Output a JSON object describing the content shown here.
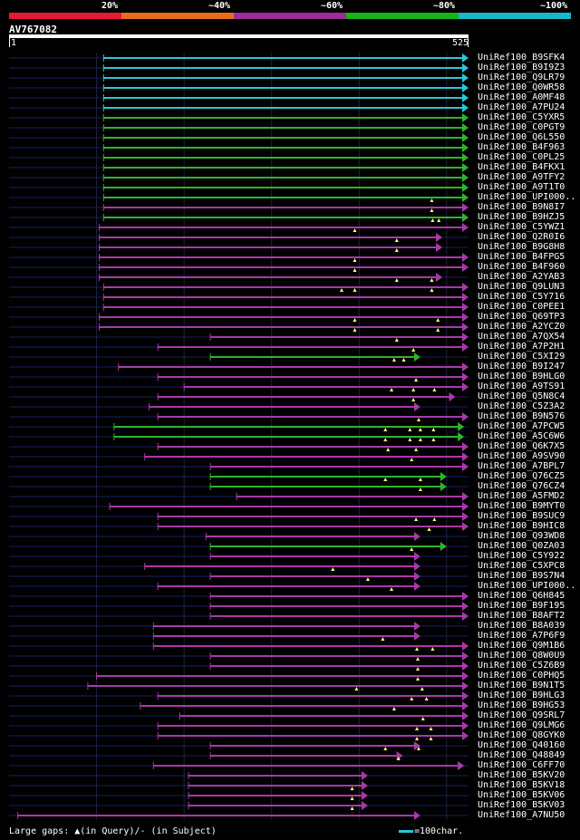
{
  "legend": {
    "items": [
      {
        "label": "20%",
        "color": "#e8173a"
      },
      {
        "label": "~40%",
        "color": "#ea6b1e"
      },
      {
        "label": "~60%",
        "color": "#9b2c9c"
      },
      {
        "label": "~80%",
        "color": "#19b219"
      },
      {
        "label": "~100%",
        "color": "#17b9c8"
      }
    ]
  },
  "query": {
    "name": "AV767082",
    "start": "1",
    "end": "525",
    "length": 525
  },
  "colors": {
    "cyan": "#29c7d6",
    "green": "#2fb32f",
    "purple": "#a63aa8",
    "dash": "#1a2060",
    "gap": "#ffff80"
  },
  "hits": [
    {
      "name": "UniRef100_B9SFK4",
      "start": 108,
      "end": 525,
      "color": "cyan",
      "gaps": []
    },
    {
      "name": "UniRef100_B9I9Z3",
      "start": 108,
      "end": 525,
      "color": "cyan",
      "gaps": []
    },
    {
      "name": "UniRef100_Q9LR79",
      "start": 108,
      "end": 525,
      "color": "cyan",
      "gaps": []
    },
    {
      "name": "UniRef100_Q0WR58",
      "start": 108,
      "end": 525,
      "color": "cyan",
      "gaps": []
    },
    {
      "name": "UniRef100_A0MF48",
      "start": 108,
      "end": 525,
      "color": "cyan",
      "gaps": []
    },
    {
      "name": "UniRef100_A7PU24",
      "start": 108,
      "end": 525,
      "color": "cyan",
      "gaps": []
    },
    {
      "name": "UniRef100_C5YXR5",
      "start": 108,
      "end": 525,
      "color": "green",
      "gaps": []
    },
    {
      "name": "UniRef100_C0PGT9",
      "start": 108,
      "end": 525,
      "color": "green",
      "gaps": []
    },
    {
      "name": "UniRef100_Q6L550",
      "start": 108,
      "end": 525,
      "color": "green",
      "gaps": []
    },
    {
      "name": "UniRef100_B4F963",
      "start": 108,
      "end": 525,
      "color": "green",
      "gaps": []
    },
    {
      "name": "UniRef100_C0PL25",
      "start": 108,
      "end": 525,
      "color": "green",
      "gaps": []
    },
    {
      "name": "UniRef100_B4FKX1",
      "start": 108,
      "end": 525,
      "color": "green",
      "gaps": []
    },
    {
      "name": "UniRef100_A9TFY2",
      "start": 108,
      "end": 525,
      "color": "green",
      "gaps": []
    },
    {
      "name": "UniRef100_A9T1T0",
      "start": 108,
      "end": 525,
      "color": "green",
      "gaps": []
    },
    {
      "name": "UniRef100_UPI000..",
      "start": 108,
      "end": 525,
      "color": "green",
      "gaps": [
        483
      ]
    },
    {
      "name": "UniRef100_B9N8I7",
      "start": 108,
      "end": 525,
      "color": "purple",
      "gaps": [
        483
      ]
    },
    {
      "name": "UniRef100_B9HZJ5",
      "start": 108,
      "end": 525,
      "color": "green",
      "gaps": [
        484,
        491
      ]
    },
    {
      "name": "UniRef100_C5YWZ1",
      "start": 103,
      "end": 525,
      "color": "purple",
      "gaps": [
        395
      ]
    },
    {
      "name": "UniRef100_Q2R0I6",
      "start": 103,
      "end": 495,
      "color": "purple",
      "gaps": [
        443
      ]
    },
    {
      "name": "UniRef100_B9G8H8",
      "start": 103,
      "end": 495,
      "color": "purple",
      "gaps": [
        443
      ]
    },
    {
      "name": "UniRef100_B4FPG5",
      "start": 103,
      "end": 525,
      "color": "purple",
      "gaps": [
        395
      ]
    },
    {
      "name": "UniRef100_B4F960",
      "start": 103,
      "end": 525,
      "color": "purple",
      "gaps": [
        395
      ]
    },
    {
      "name": "UniRef100_A2YAB3",
      "start": 103,
      "end": 495,
      "color": "purple",
      "gaps": [
        443,
        483
      ]
    },
    {
      "name": "UniRef100_Q9LUN3",
      "start": 108,
      "end": 525,
      "color": "purple",
      "gaps": [
        380,
        395,
        483
      ]
    },
    {
      "name": "UniRef100_C5Y716",
      "start": 108,
      "end": 525,
      "color": "purple",
      "gaps": []
    },
    {
      "name": "UniRef100_C0PEE1",
      "start": 108,
      "end": 525,
      "color": "purple",
      "gaps": []
    },
    {
      "name": "UniRef100_Q69TP3",
      "start": 103,
      "end": 525,
      "color": "purple",
      "gaps": [
        395,
        490
      ]
    },
    {
      "name": "UniRef100_A2YCZ0",
      "start": 103,
      "end": 525,
      "color": "purple",
      "gaps": [
        395,
        490
      ]
    },
    {
      "name": "UniRef100_A7QX54",
      "start": 230,
      "end": 525,
      "color": "purple",
      "gaps": [
        443
      ]
    },
    {
      "name": "UniRef100_A7P2H1",
      "start": 170,
      "end": 525,
      "color": "purple",
      "gaps": [
        462
      ]
    },
    {
      "name": "UniRef100_C5XI29",
      "start": 230,
      "end": 470,
      "color": "green",
      "gaps": [
        440,
        451
      ]
    },
    {
      "name": "UniRef100_B9I247",
      "start": 125,
      "end": 525,
      "color": "purple",
      "gaps": []
    },
    {
      "name": "UniRef100_B9HLG0",
      "start": 170,
      "end": 525,
      "color": "purple",
      "gaps": [
        465
      ]
    },
    {
      "name": "UniRef100_A9TS91",
      "start": 200,
      "end": 525,
      "color": "purple",
      "gaps": [
        437,
        462,
        486
      ]
    },
    {
      "name": "UniRef100_Q5N8C4",
      "start": 170,
      "end": 510,
      "color": "purple",
      "gaps": [
        462
      ]
    },
    {
      "name": "UniRef100_C5Z3A2",
      "start": 160,
      "end": 470,
      "color": "purple",
      "gaps": []
    },
    {
      "name": "UniRef100_B9N576",
      "start": 170,
      "end": 525,
      "color": "purple",
      "gaps": [
        468
      ]
    },
    {
      "name": "UniRef100_A7PCW5",
      "start": 120,
      "end": 520,
      "color": "green",
      "gaps": [
        430,
        458,
        470,
        485
      ]
    },
    {
      "name": "UniRef100_A5C6W6",
      "start": 120,
      "end": 520,
      "color": "green",
      "gaps": [
        430,
        458,
        470,
        485
      ]
    },
    {
      "name": "UniRef100_Q6K7X5",
      "start": 170,
      "end": 525,
      "color": "purple",
      "gaps": [
        433,
        465
      ]
    },
    {
      "name": "UniRef100_A9SV90",
      "start": 155,
      "end": 525,
      "color": "purple",
      "gaps": [
        460
      ]
    },
    {
      "name": "UniRef100_A7BPL7",
      "start": 230,
      "end": 525,
      "color": "purple",
      "gaps": []
    },
    {
      "name": "UniRef100_Q76CZ5",
      "start": 230,
      "end": 500,
      "color": "green",
      "gaps": [
        430,
        470
      ]
    },
    {
      "name": "UniRef100_Q76CZ4",
      "start": 230,
      "end": 500,
      "color": "green",
      "gaps": [
        470
      ]
    },
    {
      "name": "UniRef100_A5FMD2",
      "start": 260,
      "end": 525,
      "color": "purple",
      "gaps": []
    },
    {
      "name": "UniRef100_B9MYT0",
      "start": 115,
      "end": 525,
      "color": "purple",
      "gaps": []
    },
    {
      "name": "UniRef100_B9SUC9",
      "start": 170,
      "end": 525,
      "color": "purple",
      "gaps": [
        465,
        486
      ]
    },
    {
      "name": "UniRef100_B9HIC8",
      "start": 170,
      "end": 525,
      "color": "purple",
      "gaps": [
        480
      ]
    },
    {
      "name": "UniRef100_Q93WD8",
      "start": 225,
      "end": 470,
      "color": "purple",
      "gaps": []
    },
    {
      "name": "UniRef100_Q0ZA03",
      "start": 230,
      "end": 500,
      "color": "green",
      "gaps": [
        460
      ]
    },
    {
      "name": "UniRef100_C5Y922",
      "start": 230,
      "end": 470,
      "color": "purple",
      "gaps": []
    },
    {
      "name": "UniRef100_C5XPC8",
      "start": 155,
      "end": 470,
      "color": "purple",
      "gaps": [
        370
      ]
    },
    {
      "name": "UniRef100_B9S7N4",
      "start": 230,
      "end": 470,
      "color": "purple",
      "gaps": [
        410
      ]
    },
    {
      "name": "UniRef100_UPI000..",
      "start": 170,
      "end": 470,
      "color": "purple",
      "gaps": [
        437
      ]
    },
    {
      "name": "UniRef100_Q6H845",
      "start": 230,
      "end": 525,
      "color": "purple",
      "gaps": []
    },
    {
      "name": "UniRef100_B9F195",
      "start": 230,
      "end": 525,
      "color": "purple",
      "gaps": []
    },
    {
      "name": "UniRef100_B8AFT2",
      "start": 230,
      "end": 525,
      "color": "purple",
      "gaps": []
    },
    {
      "name": "UniRef100_B8A039",
      "start": 165,
      "end": 470,
      "color": "purple",
      "gaps": []
    },
    {
      "name": "UniRef100_A7P6F9",
      "start": 165,
      "end": 470,
      "color": "purple",
      "gaps": [
        427
      ]
    },
    {
      "name": "UniRef100_Q9M1B6",
      "start": 165,
      "end": 525,
      "color": "purple",
      "gaps": [
        466,
        484
      ]
    },
    {
      "name": "UniRef100_Q8W0U9",
      "start": 230,
      "end": 525,
      "color": "purple",
      "gaps": [
        467
      ]
    },
    {
      "name": "UniRef100_C5Z6B9",
      "start": 230,
      "end": 525,
      "color": "purple",
      "gaps": [
        467
      ]
    },
    {
      "name": "UniRef100_C0PHQ5",
      "start": 100,
      "end": 525,
      "color": "purple",
      "gaps": [
        467
      ]
    },
    {
      "name": "UniRef100_B9N1T5",
      "start": 90,
      "end": 525,
      "color": "purple",
      "gaps": [
        397,
        472
      ]
    },
    {
      "name": "UniRef100_B9HLG3",
      "start": 170,
      "end": 525,
      "color": "purple",
      "gaps": [
        460,
        477
      ]
    },
    {
      "name": "UniRef100_B9HG53",
      "start": 150,
      "end": 525,
      "color": "purple",
      "gaps": [
        440
      ]
    },
    {
      "name": "UniRef100_Q9SRL7",
      "start": 195,
      "end": 525,
      "color": "purple",
      "gaps": [
        473
      ]
    },
    {
      "name": "UniRef100_Q9LMG6",
      "start": 170,
      "end": 525,
      "color": "purple",
      "gaps": [
        466,
        482
      ]
    },
    {
      "name": "UniRef100_Q8GYK0",
      "start": 170,
      "end": 525,
      "color": "purple",
      "gaps": [
        466,
        482
      ]
    },
    {
      "name": "UniRef100_Q40160",
      "start": 230,
      "end": 470,
      "color": "purple",
      "gaps": [
        430,
        468
      ]
    },
    {
      "name": "UniRef100_Q48849",
      "start": 230,
      "end": 450,
      "color": "purple",
      "gaps": [
        445
      ]
    },
    {
      "name": "UniRef100_C6FF70",
      "start": 165,
      "end": 520,
      "color": "purple",
      "gaps": []
    },
    {
      "name": "UniRef100_B5KV20",
      "start": 205,
      "end": 410,
      "color": "purple",
      "gaps": []
    },
    {
      "name": "UniRef100_B5KV18",
      "start": 205,
      "end": 410,
      "color": "purple",
      "gaps": [
        392
      ]
    },
    {
      "name": "UniRef100_B5KV06",
      "start": 205,
      "end": 410,
      "color": "purple",
      "gaps": [
        392
      ]
    },
    {
      "name": "UniRef100_B5KV03",
      "start": 205,
      "end": 410,
      "color": "purple",
      "gaps": [
        392
      ]
    },
    {
      "name": "UniRef100_A7NU50",
      "start": 10,
      "end": 470,
      "color": "purple",
      "gaps": []
    }
  ],
  "footer": {
    "text": "Large gaps: ▲(in Query)/- (in Subject)",
    "scale_label": "=100char."
  }
}
